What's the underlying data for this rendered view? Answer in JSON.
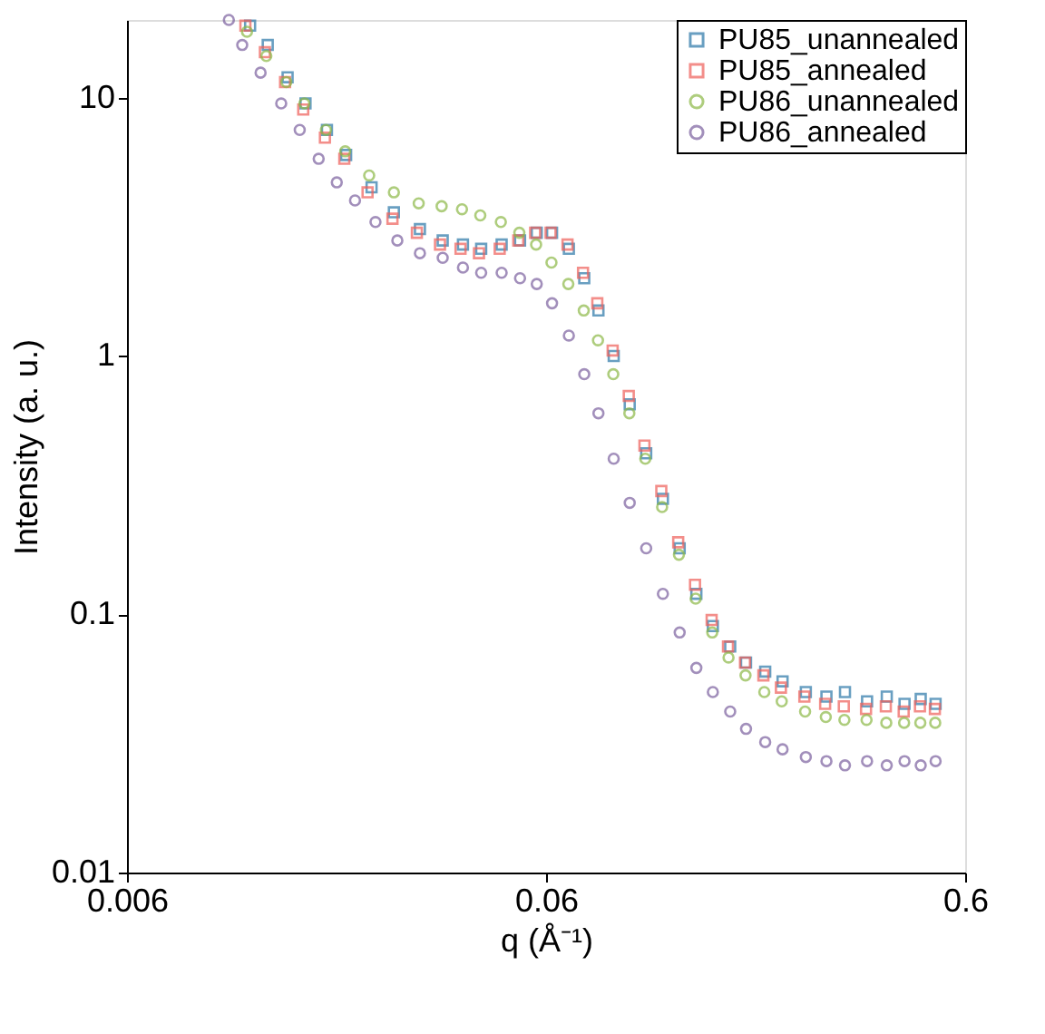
{
  "chart_data": {
    "type": "scatter",
    "xlabel": "q (Å⁻¹)",
    "ylabel": "Intensity (a. u.)",
    "log": "xy",
    "xlim": [
      0.006,
      0.6
    ],
    "ylim": [
      0.01,
      20
    ],
    "xticks": [
      0.006,
      0.06,
      0.6
    ],
    "yticks": [
      0.01,
      0.1,
      1,
      10
    ],
    "grid": false,
    "legend": "top right",
    "series": [
      {
        "name": "PU85_unannealed",
        "color": "#2a77a8",
        "marker": "square",
        "x": [
          0.0118,
          0.013,
          0.0145,
          0.016,
          0.018,
          0.02,
          0.023,
          0.026,
          0.03,
          0.034,
          0.038,
          0.042,
          0.047,
          0.052,
          0.057,
          0.062,
          0.068,
          0.074,
          0.08,
          0.087,
          0.095,
          0.104,
          0.114,
          0.125,
          0.137,
          0.15,
          0.165,
          0.18,
          0.2,
          0.22,
          0.25,
          0.28,
          0.31,
          0.35,
          0.39,
          0.43,
          0.47,
          0.51
        ],
        "values": [
          19,
          16,
          12,
          9.5,
          7.5,
          6,
          4.5,
          3.6,
          3.1,
          2.8,
          2.7,
          2.6,
          2.7,
          2.8,
          3.0,
          3.0,
          2.6,
          2.0,
          1.5,
          1.0,
          0.65,
          0.42,
          0.28,
          0.18,
          0.12,
          0.09,
          0.075,
          0.065,
          0.06,
          0.055,
          0.05,
          0.048,
          0.05,
          0.046,
          0.048,
          0.045,
          0.047,
          0.045
        ]
      },
      {
        "name": "PU85_annealed",
        "color": "#ef5f5a",
        "marker": "square",
        "x": [
          0.0115,
          0.0128,
          0.0143,
          0.0158,
          0.0178,
          0.0198,
          0.0225,
          0.0258,
          0.0295,
          0.0335,
          0.0375,
          0.0415,
          0.0465,
          0.0515,
          0.0565,
          0.0615,
          0.0675,
          0.0735,
          0.0795,
          0.0865,
          0.0945,
          0.103,
          0.113,
          0.124,
          0.136,
          0.149,
          0.163,
          0.179,
          0.198,
          0.218,
          0.248,
          0.278,
          0.308,
          0.348,
          0.388,
          0.428,
          0.468,
          0.508
        ],
        "values": [
          19,
          15,
          11.5,
          9,
          7,
          5.8,
          4.3,
          3.4,
          3.0,
          2.7,
          2.6,
          2.5,
          2.6,
          2.8,
          3.0,
          3.0,
          2.7,
          2.1,
          1.6,
          1.05,
          0.7,
          0.45,
          0.3,
          0.19,
          0.13,
          0.095,
          0.075,
          0.065,
          0.058,
          0.052,
          0.048,
          0.045,
          0.044,
          0.043,
          0.044,
          0.042,
          0.044,
          0.043
        ]
      },
      {
        "name": "PU86_unannealed",
        "color": "#8cb847",
        "marker": "circle",
        "x": [
          0.0116,
          0.0129,
          0.0144,
          0.0159,
          0.0179,
          0.0199,
          0.0227,
          0.026,
          0.0298,
          0.0338,
          0.0378,
          0.0418,
          0.0468,
          0.0518,
          0.0568,
          0.0618,
          0.0678,
          0.0738,
          0.0798,
          0.0868,
          0.0948,
          0.1035,
          0.1135,
          0.1245,
          0.1365,
          0.1495,
          0.1635,
          0.1795,
          0.199,
          0.219,
          0.249,
          0.279,
          0.309,
          0.349,
          0.389,
          0.429,
          0.469,
          0.509
        ],
        "values": [
          18,
          14.5,
          11.5,
          9.5,
          7.5,
          6.2,
          5.0,
          4.3,
          3.9,
          3.8,
          3.7,
          3.5,
          3.3,
          3.0,
          2.7,
          2.3,
          1.9,
          1.5,
          1.15,
          0.85,
          0.6,
          0.4,
          0.26,
          0.17,
          0.115,
          0.085,
          0.068,
          0.058,
          0.05,
          0.046,
          0.042,
          0.04,
          0.039,
          0.039,
          0.038,
          0.038,
          0.038,
          0.038
        ]
      },
      {
        "name": "PU86_annealed",
        "color": "#7c619f",
        "marker": "circle",
        "x": [
          0.0105,
          0.0113,
          0.0125,
          0.014,
          0.0155,
          0.0172,
          0.019,
          0.021,
          0.0235,
          0.0265,
          0.03,
          0.034,
          0.038,
          0.042,
          0.047,
          0.052,
          0.057,
          0.062,
          0.068,
          0.074,
          0.08,
          0.087,
          0.095,
          0.104,
          0.114,
          0.125,
          0.137,
          0.15,
          0.165,
          0.18,
          0.2,
          0.22,
          0.25,
          0.28,
          0.31,
          0.35,
          0.39,
          0.43,
          0.47,
          0.51
        ],
        "values": [
          20,
          16,
          12.5,
          9.5,
          7.5,
          5.8,
          4.7,
          4.0,
          3.3,
          2.8,
          2.5,
          2.4,
          2.2,
          2.1,
          2.1,
          2.0,
          1.9,
          1.6,
          1.2,
          0.85,
          0.6,
          0.4,
          0.27,
          0.18,
          0.12,
          0.085,
          0.062,
          0.05,
          0.042,
          0.036,
          0.032,
          0.03,
          0.028,
          0.027,
          0.026,
          0.027,
          0.026,
          0.027,
          0.026,
          0.027
        ]
      }
    ]
  }
}
